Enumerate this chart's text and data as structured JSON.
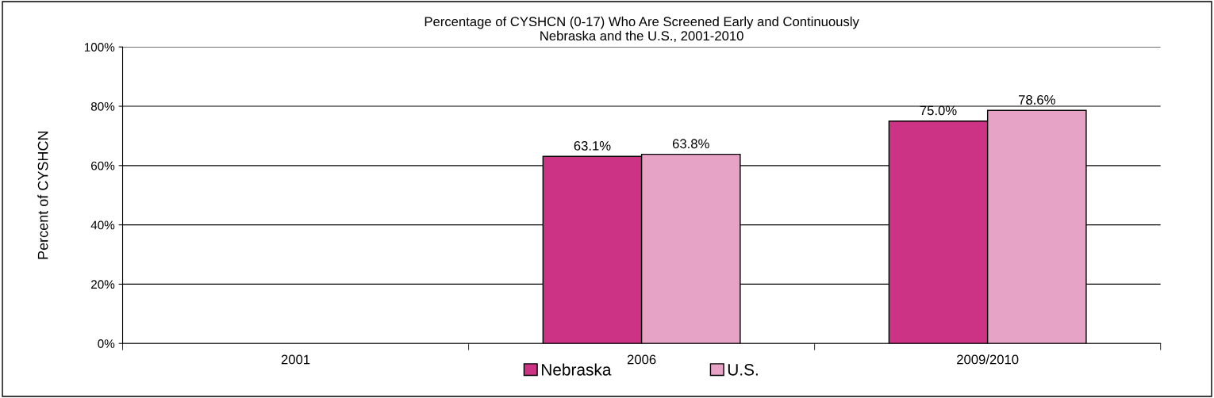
{
  "chart_data": {
    "type": "bar",
    "title": "Percentage of CYSHCN (0-17) Who Are Screened Early and Continuously\nNebraska and the U.S., 2001-2010",
    "ylabel": "Percent of CYSHCN",
    "categories": [
      "2001",
      "2006",
      "2009/2010"
    ],
    "series": [
      {
        "name": "Nebraska",
        "color": "#cc3385",
        "values": [
          null,
          63.1,
          75.0
        ],
        "value_labels": [
          null,
          "63.1%",
          "75.0%"
        ]
      },
      {
        "name": "U.S.",
        "color": "#e6a3c6",
        "values": [
          null,
          63.8,
          78.6
        ],
        "value_labels": [
          null,
          "63.8%",
          "78.6%"
        ]
      }
    ],
    "ylim": [
      0,
      100
    ],
    "yticks": [
      {
        "value": 0,
        "label": "0%"
      },
      {
        "value": 20,
        "label": "20%"
      },
      {
        "value": 40,
        "label": "40%"
      },
      {
        "value": 60,
        "label": "60%"
      },
      {
        "value": 80,
        "label": "80%"
      },
      {
        "value": 100,
        "label": "100%"
      }
    ],
    "grid": "y",
    "legend": "bottom"
  }
}
